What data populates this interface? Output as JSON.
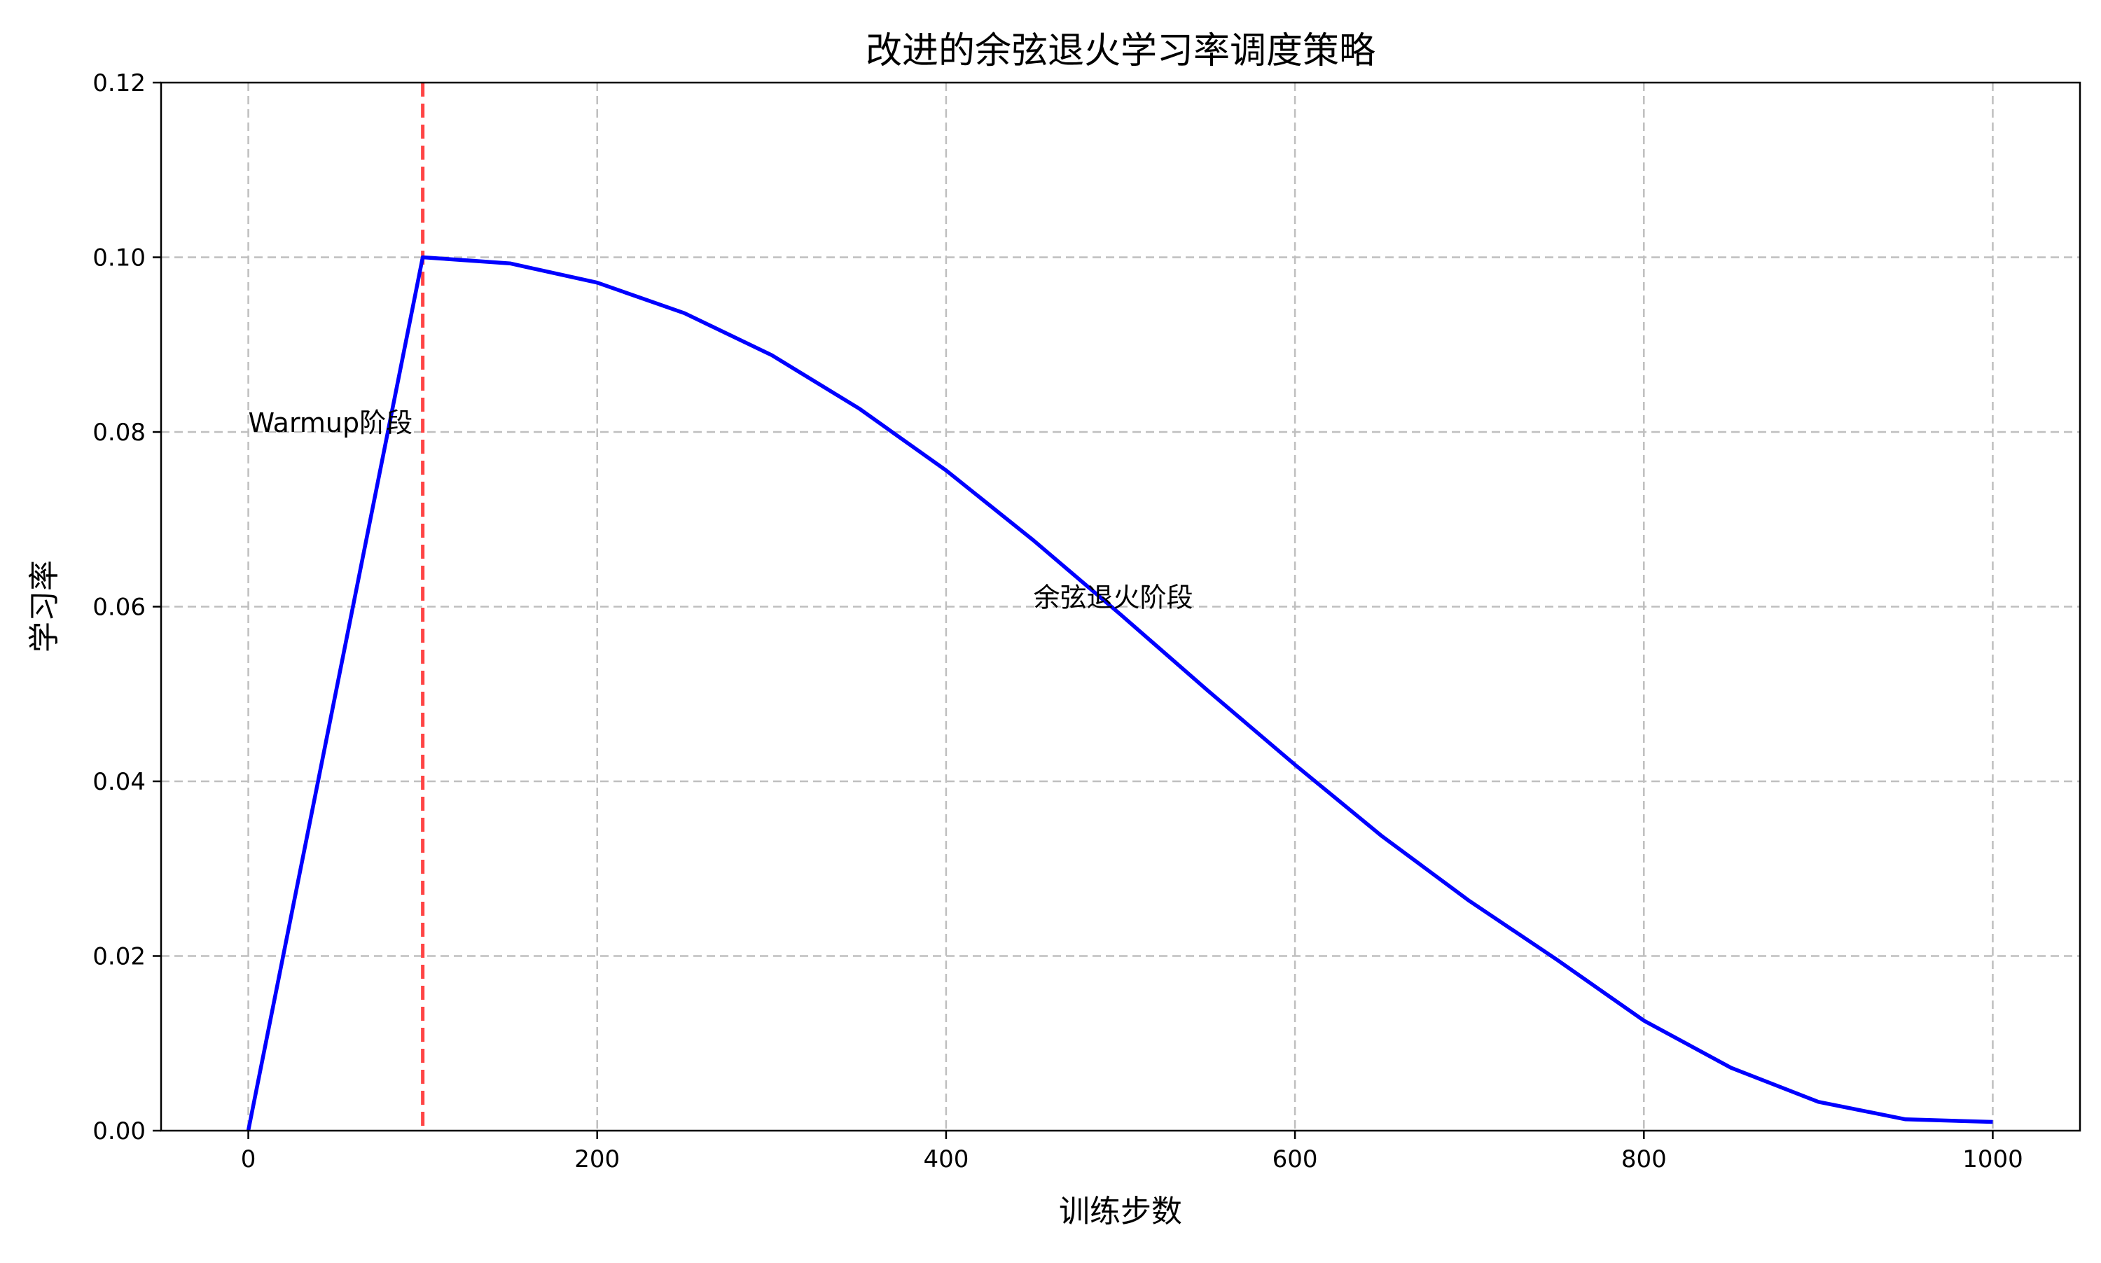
{
  "chart_data": {
    "type": "line",
    "title": "改进的余弦退火学习率调度策略",
    "xlabel": "训练步数",
    "ylabel": "学习率",
    "xlim": [
      -50,
      1050
    ],
    "ylim": [
      0,
      0.12
    ],
    "x_ticks": [
      0,
      200,
      400,
      600,
      800,
      1000
    ],
    "x_tick_labels": [
      "0",
      "200",
      "400",
      "600",
      "800",
      "1000"
    ],
    "y_ticks": [
      0,
      0.02,
      0.04,
      0.06,
      0.08,
      0.1,
      0.12
    ],
    "y_tick_labels": [
      "0.00",
      "0.02",
      "0.04",
      "0.06",
      "0.08",
      "0.10",
      "0.12"
    ],
    "grid": true,
    "series": [
      {
        "color": "#0000ff",
        "x": [
          0,
          100,
          150,
          200,
          250,
          300,
          350,
          400,
          450,
          500,
          550,
          600,
          650,
          700,
          750,
          800,
          850,
          900,
          950,
          1000
        ],
        "y": [
          0,
          0.1,
          0.0993,
          0.0971,
          0.0936,
          0.0888,
          0.0827,
          0.0756,
          0.0676,
          0.0591,
          0.0504,
          0.0419,
          0.0337,
          0.0263,
          0.0196,
          0.0126,
          0.0072,
          0.0033,
          0.0013,
          0.001
        ]
      }
    ],
    "vlines": [
      {
        "x": 100,
        "color": "#ff4444",
        "style": "dashed"
      }
    ],
    "annotations": [
      {
        "text": "Warmup阶段",
        "x": 0,
        "y": 0.08
      },
      {
        "text": "余弦退火阶段",
        "x": 450,
        "y": 0.06
      }
    ]
  }
}
